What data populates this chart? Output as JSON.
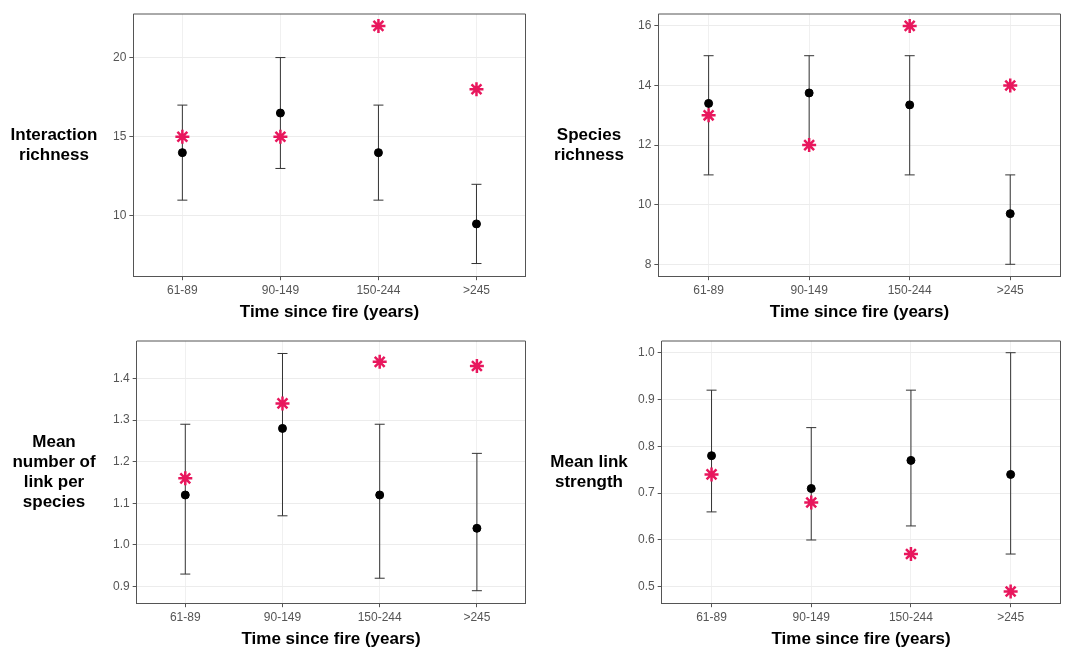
{
  "chart_data": [
    {
      "type": "scatter",
      "xlabel": "Time since fire (years)",
      "ylabel": "Interaction richness",
      "categories": [
        "61-89",
        "90-149",
        "150-244",
        ">245"
      ],
      "ylim": [
        6.2,
        22.75
      ],
      "yticks": [
        10,
        15,
        20
      ],
      "grid": true,
      "legend": false,
      "series": [
        {
          "color": "#000000",
          "marker": "circle",
          "values": [
            14,
            16.5,
            14,
            9.5
          ],
          "errors": [
            [
              11,
              17
            ],
            [
              13,
              20
            ],
            [
              11,
              17
            ],
            [
              7,
              12
            ]
          ]
        },
        {
          "color": "#e8175d",
          "marker": "cross",
          "values": [
            15,
            15,
            22,
            18
          ]
        }
      ]
    },
    {
      "type": "scatter",
      "xlabel": "Time since fire (years)",
      "ylabel": "Species richness",
      "categories": [
        "61-89",
        "90-149",
        "150-244",
        ">245"
      ],
      "ylim": [
        7.6,
        16.4
      ],
      "yticks": [
        8,
        10,
        12,
        14,
        16
      ],
      "grid": true,
      "legend": false,
      "series": [
        {
          "color": "#000000",
          "marker": "circle",
          "values": [
            13.4,
            13.75,
            13.35,
            9.7
          ],
          "errors": [
            [
              11,
              15
            ],
            [
              12,
              15
            ],
            [
              11,
              15
            ],
            [
              8,
              11
            ]
          ]
        },
        {
          "color": "#e8175d",
          "marker": "cross",
          "values": [
            13,
            12,
            16,
            14
          ]
        }
      ]
    },
    {
      "type": "scatter",
      "xlabel": "Time since fire (years)",
      "ylabel": "Mean number of link per species",
      "categories": [
        "61-89",
        "90-149",
        "150-244",
        ">245"
      ],
      "ylim": [
        0.86,
        1.49
      ],
      "yticks": [
        {
          "value": 0.9,
          "label": "0.9"
        },
        {
          "value": 1.0,
          "label": "1.0"
        },
        {
          "value": 1.1,
          "label": "1.1"
        },
        {
          "value": 1.2,
          "label": "1.2"
        },
        {
          "value": 1.3,
          "label": "1.3"
        },
        {
          "value": 1.4,
          "label": "1.4"
        }
      ],
      "grid": true,
      "legend": false,
      "series": [
        {
          "color": "#000000",
          "marker": "circle",
          "values": [
            1.12,
            1.28,
            1.12,
            1.04
          ],
          "errors": [
            [
              0.93,
              1.29
            ],
            [
              1.07,
              1.46
            ],
            [
              0.92,
              1.29
            ],
            [
              0.89,
              1.22
            ]
          ]
        },
        {
          "color": "#e8175d",
          "marker": "cross",
          "values": [
            1.16,
            1.34,
            1.44,
            1.43
          ]
        }
      ]
    },
    {
      "type": "scatter",
      "xlabel": "Time since fire (years)",
      "ylabel": "Mean link strength",
      "categories": [
        "61-89",
        "90-149",
        "150-244",
        ">245"
      ],
      "ylim": [
        0.465,
        1.025
      ],
      "yticks": [
        {
          "value": 0.5,
          "label": "0.5"
        },
        {
          "value": 0.6,
          "label": "0.6"
        },
        {
          "value": 0.7,
          "label": "0.7"
        },
        {
          "value": 0.8,
          "label": "0.8"
        },
        {
          "value": 0.9,
          "label": "0.9"
        },
        {
          "value": 1.0,
          "label": "1.0"
        }
      ],
      "grid": true,
      "legend": false,
      "series": [
        {
          "color": "#000000",
          "marker": "circle",
          "values": [
            0.78,
            0.71,
            0.77,
            0.74
          ],
          "errors": [
            [
              0.66,
              0.92
            ],
            [
              0.6,
              0.84
            ],
            [
              0.63,
              0.92
            ],
            [
              0.57,
              1.0
            ]
          ]
        },
        {
          "color": "#e8175d",
          "marker": "cross",
          "values": [
            0.74,
            0.68,
            0.57,
            0.49
          ]
        }
      ]
    }
  ]
}
